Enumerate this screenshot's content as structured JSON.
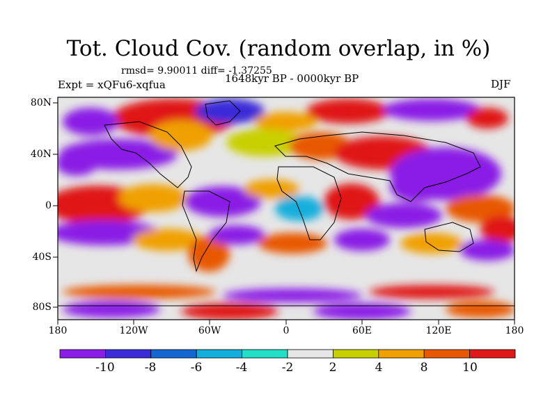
{
  "title": "Tot. Cloud Cov. (random overlap, in %)",
  "stats": "rmsd= 9.90011 diff= -1.37255",
  "period": "1648kyr BP - 0000kyr BP",
  "experiment": "Expt = xQFu6-xqfua",
  "season": "DJF",
  "lat_labels": [
    "80N",
    "40N",
    "0",
    "40S",
    "80S"
  ],
  "lon_labels": [
    "180",
    "120W",
    "60W",
    "0",
    "60E",
    "120E",
    "180"
  ],
  "colorbar": {
    "labels": [
      "-10",
      "-8",
      "-6",
      "-4",
      "-2",
      "2",
      "4",
      "8",
      "10"
    ],
    "colors": [
      "#8a1ee6",
      "#3a2cd8",
      "#1466d0",
      "#12aedc",
      "#22e0c8",
      "#e6e6e6",
      "#c8d000",
      "#f0a000",
      "#e85800",
      "#e01818"
    ]
  }
}
